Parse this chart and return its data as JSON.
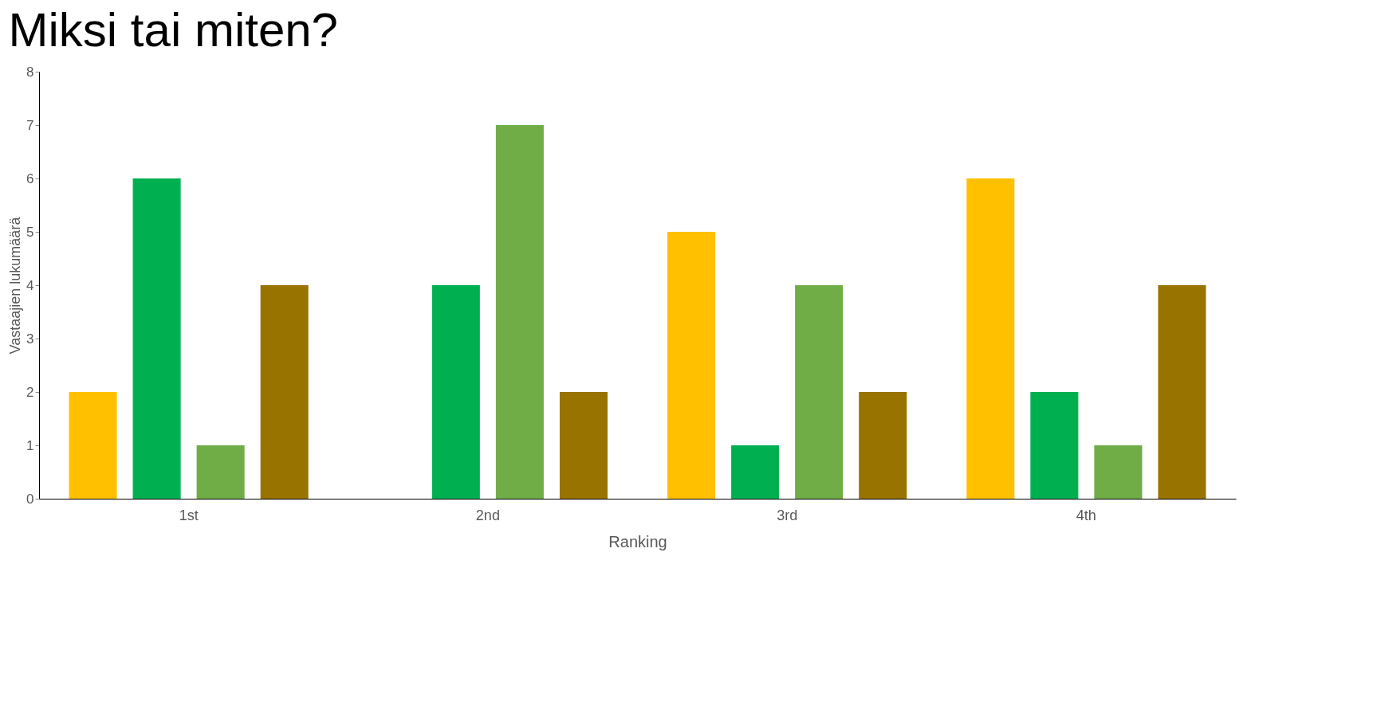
{
  "chart_data": {
    "type": "bar",
    "title": "Miksi tai miten?",
    "xlabel": "Ranking",
    "ylabel": "Vastaajien lukumäärä",
    "categories": [
      "1st",
      "2nd",
      "3rd",
      "4th"
    ],
    "series": [
      {
        "color": "#ffc000",
        "values": [
          2,
          0,
          5,
          6
        ]
      },
      {
        "color": "#00b050",
        "values": [
          6,
          4,
          1,
          2
        ]
      },
      {
        "color": "#70ad47",
        "values": [
          1,
          7,
          4,
          1
        ]
      },
      {
        "color": "#997300",
        "values": [
          4,
          2,
          2,
          4
        ]
      }
    ],
    "ylim": [
      0,
      8
    ],
    "yticks": [
      0,
      1,
      2,
      3,
      4,
      5,
      6,
      7,
      8
    ],
    "grid": false,
    "legend": false
  }
}
